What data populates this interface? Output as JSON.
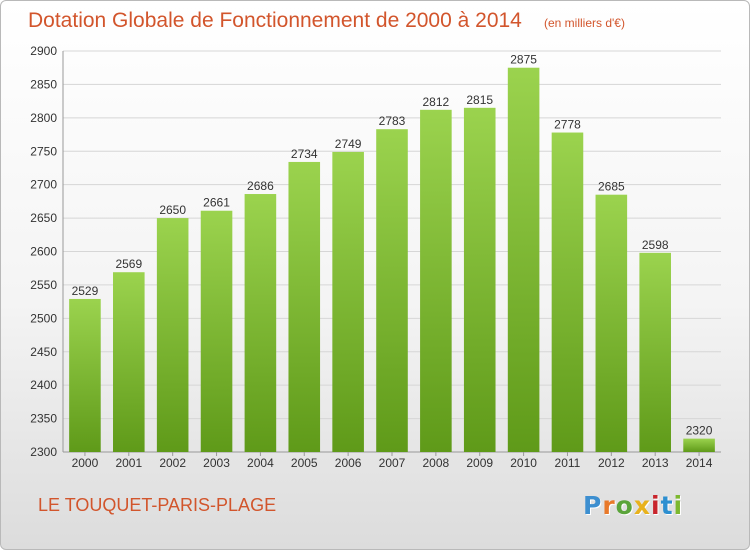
{
  "header": {
    "title": "Dotation Globale de Fonctionnement de 2000 à 2014",
    "subtitle": "(en milliers d'€)"
  },
  "footer": {
    "commune": "LE TOUQUET-PARIS-PLAGE"
  },
  "logo": {
    "letters": [
      "P",
      "r",
      "o",
      "x",
      "i",
      "t",
      "i"
    ],
    "colors": [
      "#3d8fd0",
      "#e8792a",
      "#5aa43a",
      "#e8b21c",
      "#c8252c",
      "#2d8fd0",
      "#7cb82f"
    ]
  },
  "chart_data": {
    "type": "bar",
    "title": "Dotation Globale de Fonctionnement de 2000 à 2014",
    "subtitle": "(en milliers d'€)",
    "xlabel": "",
    "ylabel": "",
    "categories": [
      "2000",
      "2001",
      "2002",
      "2003",
      "2004",
      "2005",
      "2006",
      "2007",
      "2008",
      "2009",
      "2010",
      "2011",
      "2012",
      "2013",
      "2014"
    ],
    "values": [
      2529,
      2569,
      2650,
      2661,
      2686,
      2734,
      2749,
      2783,
      2812,
      2815,
      2875,
      2778,
      2685,
      2598,
      2320
    ],
    "ylim": [
      2300,
      2900
    ],
    "yticks": [
      2300,
      2350,
      2400,
      2450,
      2500,
      2550,
      2600,
      2650,
      2700,
      2750,
      2800,
      2850,
      2900
    ],
    "grid": true,
    "bar_color_top": "#9bd34e",
    "bar_color_bottom": "#5f9a19"
  }
}
